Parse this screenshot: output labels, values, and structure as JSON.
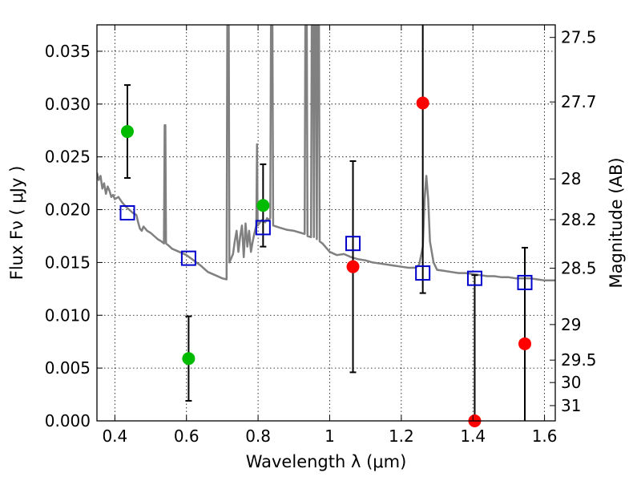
{
  "chart_data": {
    "type": "scatter",
    "xlabel": "Wavelength  λ (μm)",
    "ylabel": "Flux  Fν  ( μJy )",
    "y2label": "Magnitude (AB)",
    "xlim": [
      0.35,
      1.63
    ],
    "ylim": [
      0.0,
      0.0375
    ],
    "grid": true,
    "x_ticks": [
      0.4,
      0.6,
      0.8,
      1.0,
      1.2,
      1.4,
      1.6
    ],
    "x_tick_labels": [
      "0.4",
      "0.6",
      "0.8",
      "1",
      "1.2",
      "1.4",
      "1.6"
    ],
    "y_ticks": [
      0.0,
      0.005,
      0.01,
      0.015,
      0.02,
      0.025,
      0.03,
      0.035
    ],
    "y_tick_labels": [
      "0.000",
      "0.005",
      "0.010",
      "0.015",
      "0.020",
      "0.025",
      "0.030",
      "0.035"
    ],
    "y2_ticks": [
      27.5,
      27.7,
      28,
      28.2,
      28.5,
      29,
      29.5,
      30,
      31
    ],
    "y2_tick_labels": [
      "27.5",
      "27.7",
      "28",
      "28.2",
      "28.5",
      "29",
      "29.5",
      "30",
      "31"
    ],
    "series": [
      {
        "marker": "circle",
        "color": "#00bb00",
        "points": [
          {
            "x": 0.435,
            "y": 0.0274,
            "err": 0.0044
          },
          {
            "x": 0.606,
            "y": 0.0059,
            "err": 0.004
          },
          {
            "x": 0.814,
            "y": 0.0204,
            "err": 0.0039
          }
        ]
      },
      {
        "marker": "circle",
        "color": "#ff0000",
        "points": [
          {
            "x": 1.065,
            "y": 0.0146,
            "err": 0.01
          },
          {
            "x": 1.26,
            "y": 0.0301,
            "err": 0.018
          },
          {
            "x": 1.405,
            "y": -0.0002,
            "err": 0.014
          },
          {
            "x": 1.545,
            "y": 0.0073,
            "err": 0.0091
          }
        ]
      },
      {
        "marker": "open-square",
        "color": "#0000cc",
        "points": [
          {
            "x": 0.435,
            "y": 0.0197
          },
          {
            "x": 0.606,
            "y": 0.0154
          },
          {
            "x": 0.814,
            "y": 0.0183
          },
          {
            "x": 1.065,
            "y": 0.0168
          },
          {
            "x": 1.26,
            "y": 0.014
          },
          {
            "x": 1.405,
            "y": 0.0135
          },
          {
            "x": 1.545,
            "y": 0.0131
          }
        ]
      },
      {
        "type": "line",
        "color": "#808080",
        "points": [
          [
            0.35,
            0.0235
          ],
          [
            0.355,
            0.0228
          ],
          [
            0.36,
            0.0232
          ],
          [
            0.365,
            0.022
          ],
          [
            0.37,
            0.0225
          ],
          [
            0.375,
            0.0215
          ],
          [
            0.38,
            0.0222
          ],
          [
            0.385,
            0.0218
          ],
          [
            0.39,
            0.0212
          ],
          [
            0.395,
            0.0214
          ],
          [
            0.4,
            0.021
          ],
          [
            0.41,
            0.0212
          ],
          [
            0.42,
            0.0207
          ],
          [
            0.43,
            0.0203
          ],
          [
            0.44,
            0.02
          ],
          [
            0.45,
            0.0197
          ],
          [
            0.46,
            0.0195
          ],
          [
            0.465,
            0.0188
          ],
          [
            0.47,
            0.0182
          ],
          [
            0.475,
            0.018
          ],
          [
            0.48,
            0.0184
          ],
          [
            0.49,
            0.018
          ],
          [
            0.5,
            0.0178
          ],
          [
            0.51,
            0.0175
          ],
          [
            0.52,
            0.0172
          ],
          [
            0.53,
            0.017
          ],
          [
            0.537,
            0.0168
          ],
          [
            0.539,
            0.028
          ],
          [
            0.541,
            0.028
          ],
          [
            0.543,
            0.0168
          ],
          [
            0.55,
            0.0166
          ],
          [
            0.56,
            0.0163
          ],
          [
            0.58,
            0.016
          ],
          [
            0.6,
            0.0157
          ],
          [
            0.62,
            0.0152
          ],
          [
            0.64,
            0.0147
          ],
          [
            0.66,
            0.0141
          ],
          [
            0.68,
            0.0138
          ],
          [
            0.7,
            0.0135
          ],
          [
            0.712,
            0.0134
          ],
          [
            0.714,
            0.0375
          ],
          [
            0.718,
            0.0375
          ],
          [
            0.72,
            0.015
          ],
          [
            0.73,
            0.0158
          ],
          [
            0.735,
            0.017
          ],
          [
            0.74,
            0.018
          ],
          [
            0.745,
            0.016
          ],
          [
            0.75,
            0.0175
          ],
          [
            0.755,
            0.0185
          ],
          [
            0.76,
            0.0155
          ],
          [
            0.765,
            0.0187
          ],
          [
            0.77,
            0.0165
          ],
          [
            0.775,
            0.018
          ],
          [
            0.78,
            0.016
          ],
          [
            0.785,
            0.017
          ],
          [
            0.79,
            0.0178
          ],
          [
            0.795,
            0.0185
          ],
          [
            0.797,
            0.0262
          ],
          [
            0.799,
            0.0185
          ],
          [
            0.81,
            0.019
          ],
          [
            0.82,
            0.0188
          ],
          [
            0.825,
            0.0192
          ],
          [
            0.83,
            0.019
          ],
          [
            0.834,
            0.0192
          ],
          [
            0.836,
            0.0375
          ],
          [
            0.84,
            0.0375
          ],
          [
            0.842,
            0.0185
          ],
          [
            0.86,
            0.0183
          ],
          [
            0.88,
            0.0181
          ],
          [
            0.9,
            0.018
          ],
          [
            0.92,
            0.0178
          ],
          [
            0.93,
            0.0177
          ],
          [
            0.932,
            0.0375
          ],
          [
            0.936,
            0.0375
          ],
          [
            0.938,
            0.0175
          ],
          [
            0.948,
            0.0174
          ],
          [
            0.95,
            0.0375
          ],
          [
            0.954,
            0.0375
          ],
          [
            0.956,
            0.0174
          ],
          [
            0.958,
            0.0375
          ],
          [
            0.962,
            0.0375
          ],
          [
            0.964,
            0.0172
          ],
          [
            0.966,
            0.0375
          ],
          [
            0.97,
            0.0375
          ],
          [
            0.972,
            0.017
          ],
          [
            0.98,
            0.0168
          ],
          [
            1.0,
            0.016
          ],
          [
            1.02,
            0.0157
          ],
          [
            1.04,
            0.0158
          ],
          [
            1.06,
            0.0155
          ],
          [
            1.08,
            0.0153
          ],
          [
            1.1,
            0.0152
          ],
          [
            1.12,
            0.015
          ],
          [
            1.14,
            0.0149
          ],
          [
            1.16,
            0.0148
          ],
          [
            1.18,
            0.0147
          ],
          [
            1.2,
            0.0146
          ],
          [
            1.22,
            0.0145
          ],
          [
            1.24,
            0.0145
          ],
          [
            1.25,
            0.0148
          ],
          [
            1.26,
            0.0165
          ],
          [
            1.265,
            0.021
          ],
          [
            1.27,
            0.0232
          ],
          [
            1.275,
            0.021
          ],
          [
            1.28,
            0.017
          ],
          [
            1.29,
            0.015
          ],
          [
            1.3,
            0.0143
          ],
          [
            1.32,
            0.0142
          ],
          [
            1.34,
            0.0141
          ],
          [
            1.36,
            0.014
          ],
          [
            1.38,
            0.014
          ],
          [
            1.4,
            0.0139
          ],
          [
            1.42,
            0.0138
          ],
          [
            1.44,
            0.0137
          ],
          [
            1.46,
            0.0137
          ],
          [
            1.48,
            0.0136
          ],
          [
            1.5,
            0.0136
          ],
          [
            1.52,
            0.0135
          ],
          [
            1.54,
            0.0135
          ],
          [
            1.56,
            0.0135
          ],
          [
            1.58,
            0.0134
          ],
          [
            1.6,
            0.0133
          ],
          [
            1.63,
            0.0133
          ]
        ]
      }
    ]
  }
}
